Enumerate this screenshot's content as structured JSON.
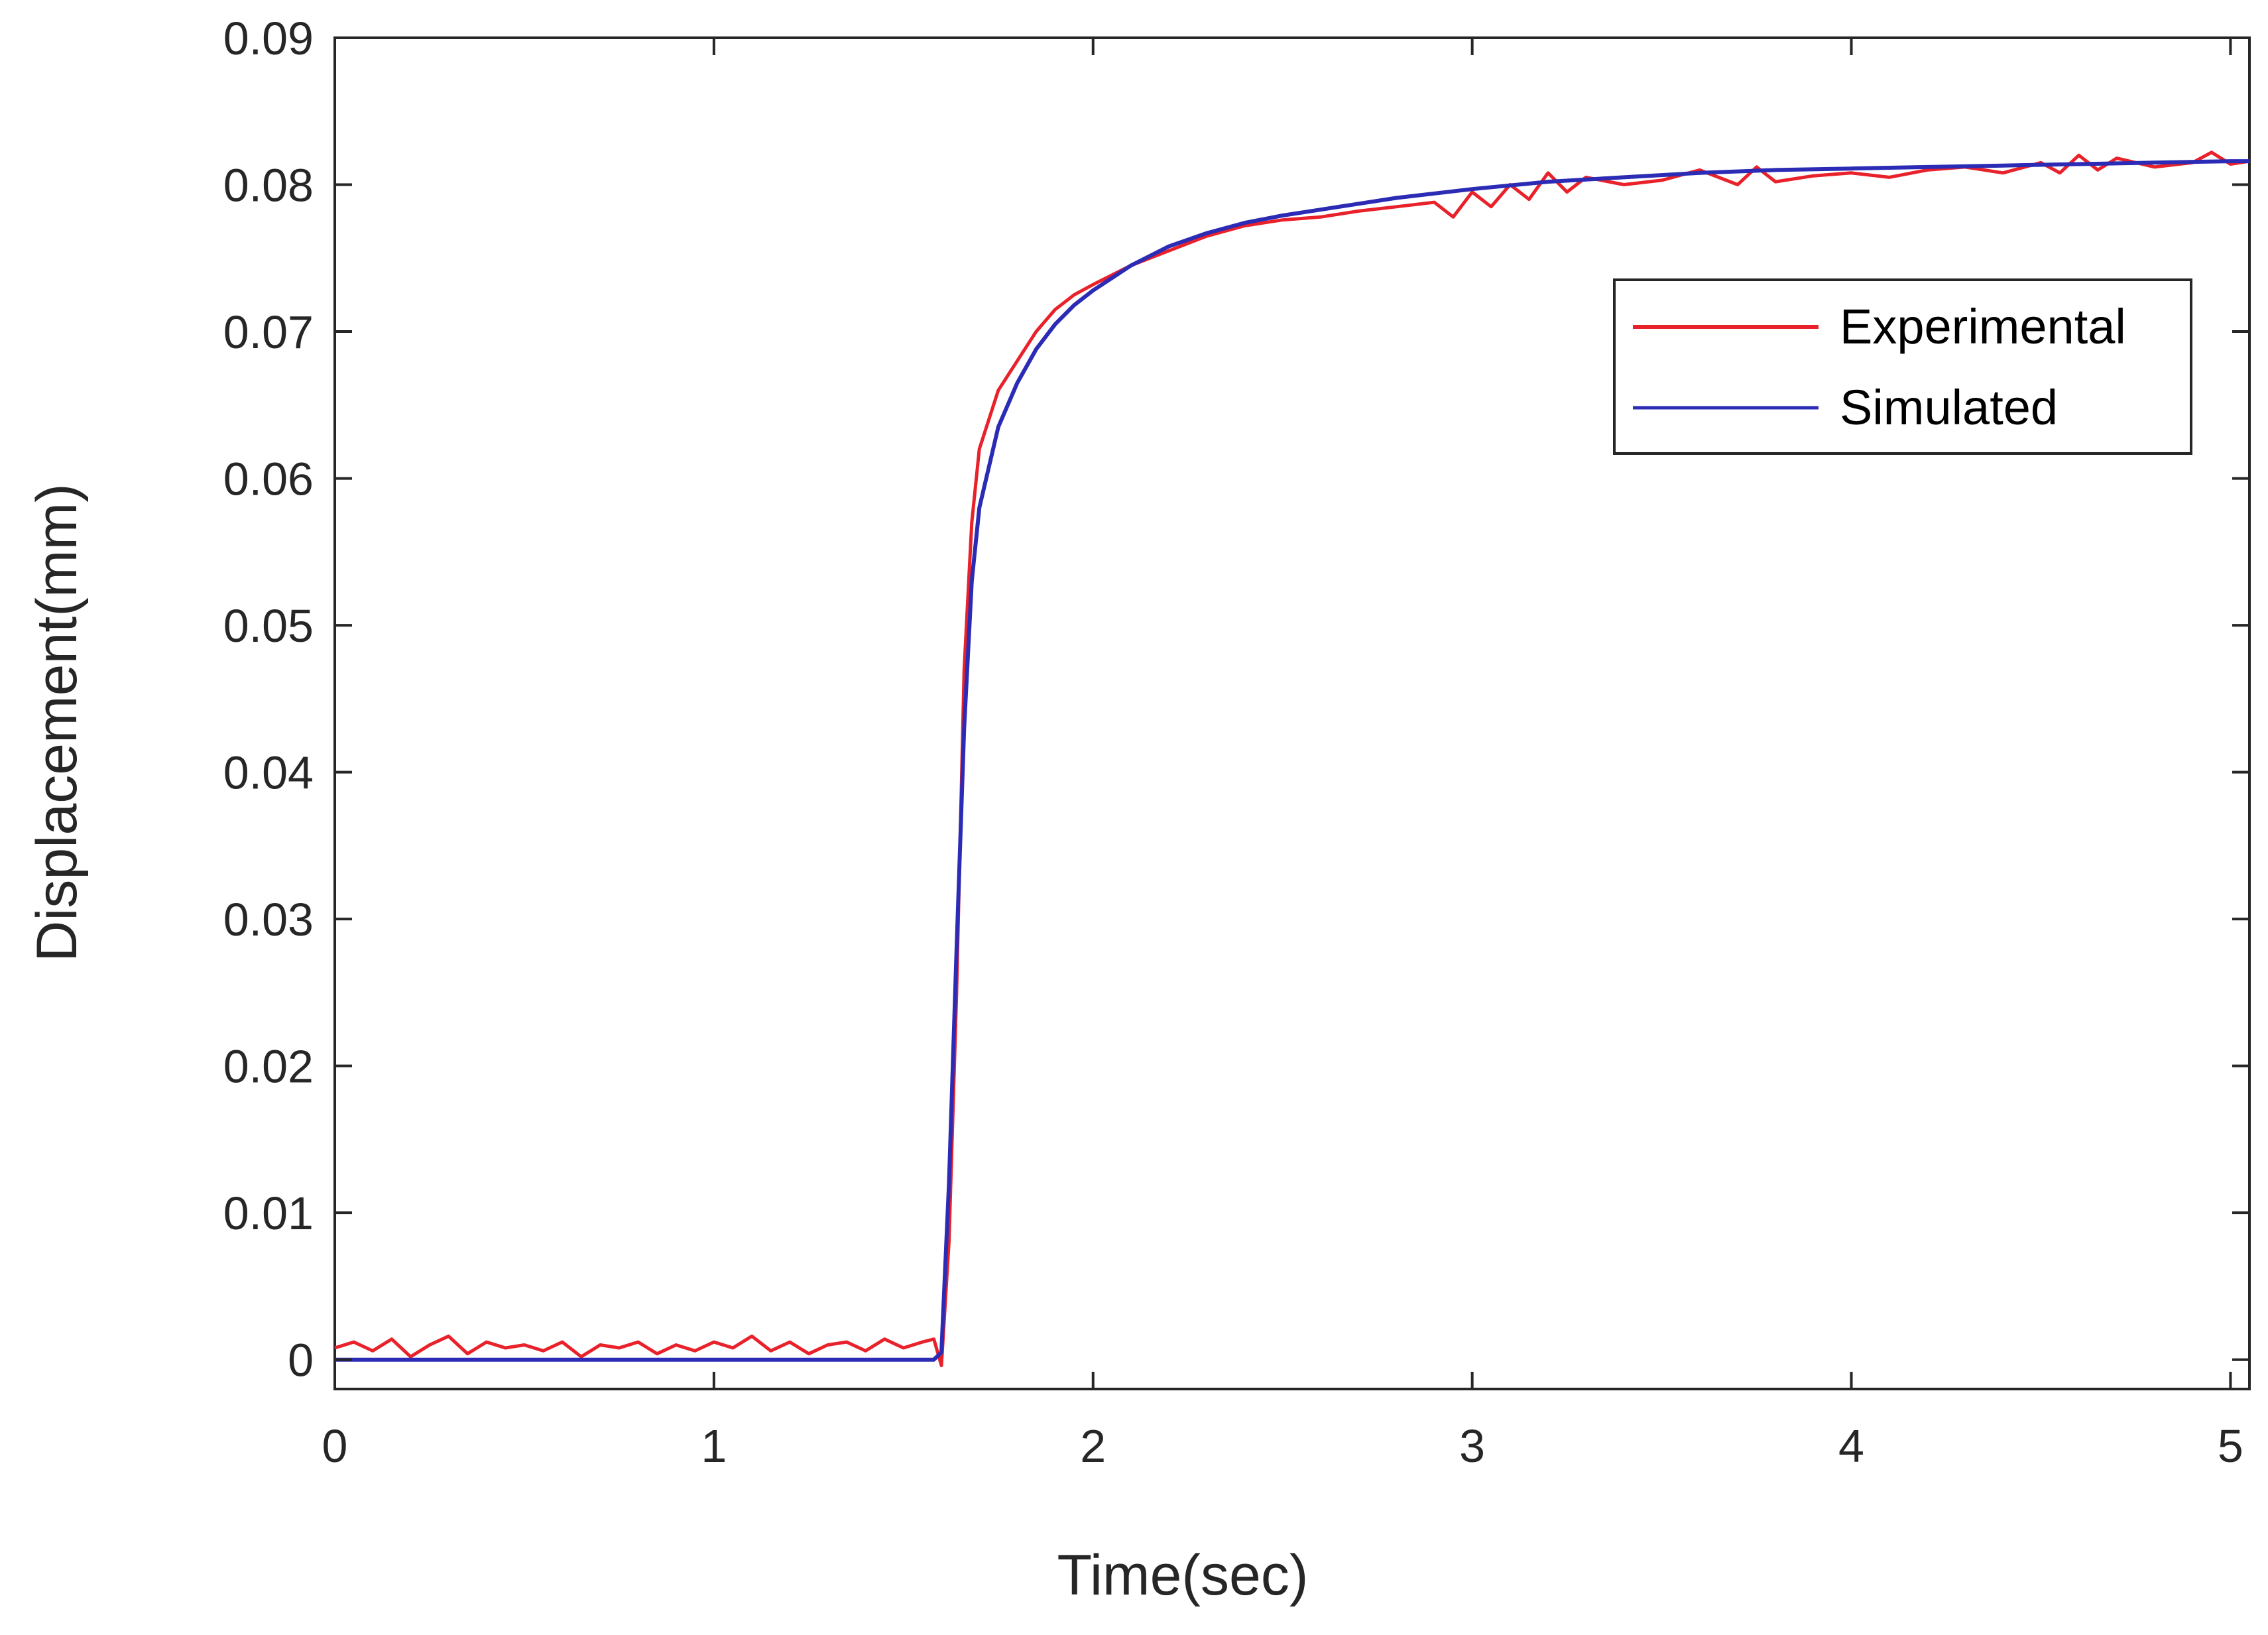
{
  "chart_data": {
    "type": "line",
    "title": "",
    "xlabel": "Time(sec)",
    "ylabel": "Displacement(mm)",
    "xlim": [
      0,
      5.05
    ],
    "ylim": [
      -0.002,
      0.09
    ],
    "xticks": [
      0,
      1,
      2,
      3,
      4,
      5
    ],
    "xtick_labels": [
      "0",
      "1",
      "2",
      "3",
      "4",
      "5"
    ],
    "yticks": [
      0,
      0.01,
      0.02,
      0.03,
      0.04,
      0.05,
      0.06,
      0.07,
      0.08,
      0.09
    ],
    "ytick_labels": [
      "0",
      "0.01",
      "0.02",
      "0.03",
      "0.04",
      "0.05",
      "0.06",
      "0.07",
      "0.08",
      "0.09"
    ],
    "grid": false,
    "legend": {
      "placement": "upper-right"
    },
    "series": [
      {
        "name": "Experimental",
        "color": "#e8212a",
        "x": [
          0,
          0.05,
          0.1,
          0.15,
          0.2,
          0.25,
          0.3,
          0.35,
          0.4,
          0.45,
          0.5,
          0.55,
          0.6,
          0.65,
          0.7,
          0.75,
          0.8,
          0.85,
          0.9,
          0.95,
          1.0,
          1.05,
          1.1,
          1.15,
          1.2,
          1.25,
          1.3,
          1.35,
          1.4,
          1.45,
          1.5,
          1.55,
          1.58,
          1.6,
          1.62,
          1.64,
          1.66,
          1.68,
          1.7,
          1.75,
          1.8,
          1.85,
          1.9,
          1.95,
          2.0,
          2.1,
          2.2,
          2.3,
          2.4,
          2.5,
          2.6,
          2.7,
          2.8,
          2.9,
          2.95,
          3.0,
          3.05,
          3.1,
          3.15,
          3.2,
          3.25,
          3.3,
          3.4,
          3.5,
          3.6,
          3.7,
          3.75,
          3.8,
          3.9,
          4.0,
          4.1,
          4.2,
          4.3,
          4.4,
          4.5,
          4.55,
          4.6,
          4.65,
          4.7,
          4.8,
          4.9,
          4.95,
          5.0,
          5.05
        ],
        "y": [
          0.0008,
          0.0012,
          0.0006,
          0.0014,
          0.0002,
          0.001,
          0.0016,
          0.0004,
          0.0012,
          0.0008,
          0.001,
          0.0006,
          0.0012,
          0.0002,
          0.001,
          0.0008,
          0.0012,
          0.0004,
          0.001,
          0.0006,
          0.0012,
          0.0008,
          0.0016,
          0.0006,
          0.0012,
          0.0004,
          0.001,
          0.0012,
          0.0006,
          0.0014,
          0.0008,
          0.0012,
          0.0014,
          -0.0004,
          0.008,
          0.025,
          0.047,
          0.057,
          0.062,
          0.066,
          0.068,
          0.07,
          0.0715,
          0.0725,
          0.0732,
          0.0745,
          0.0755,
          0.0765,
          0.0772,
          0.0776,
          0.0778,
          0.0782,
          0.0785,
          0.0788,
          0.0778,
          0.0795,
          0.0785,
          0.08,
          0.079,
          0.0808,
          0.0795,
          0.0805,
          0.08,
          0.0803,
          0.081,
          0.08,
          0.0812,
          0.0802,
          0.0806,
          0.0808,
          0.0805,
          0.081,
          0.0812,
          0.0808,
          0.0815,
          0.0808,
          0.082,
          0.081,
          0.0818,
          0.0812,
          0.0815,
          0.0822,
          0.0814,
          0.0816
        ]
      },
      {
        "name": "Simulated",
        "color": "#2b2bb5",
        "x": [
          0,
          0.5,
          1.0,
          1.5,
          1.58,
          1.6,
          1.62,
          1.64,
          1.66,
          1.68,
          1.7,
          1.75,
          1.8,
          1.85,
          1.9,
          1.95,
          2.0,
          2.1,
          2.2,
          2.3,
          2.4,
          2.5,
          2.6,
          2.8,
          3.0,
          3.2,
          3.4,
          3.6,
          3.8,
          4.0,
          4.2,
          4.4,
          4.6,
          4.8,
          5.0,
          5.05
        ],
        "y": [
          0,
          0,
          0,
          0,
          0,
          0.0005,
          0.012,
          0.028,
          0.043,
          0.053,
          0.058,
          0.0635,
          0.0665,
          0.0688,
          0.0705,
          0.0718,
          0.0728,
          0.0745,
          0.0758,
          0.0767,
          0.0774,
          0.0779,
          0.0783,
          0.0791,
          0.0797,
          0.0802,
          0.0805,
          0.0808,
          0.081,
          0.0811,
          0.0812,
          0.0813,
          0.0814,
          0.0815,
          0.0816,
          0.0816
        ]
      }
    ]
  }
}
